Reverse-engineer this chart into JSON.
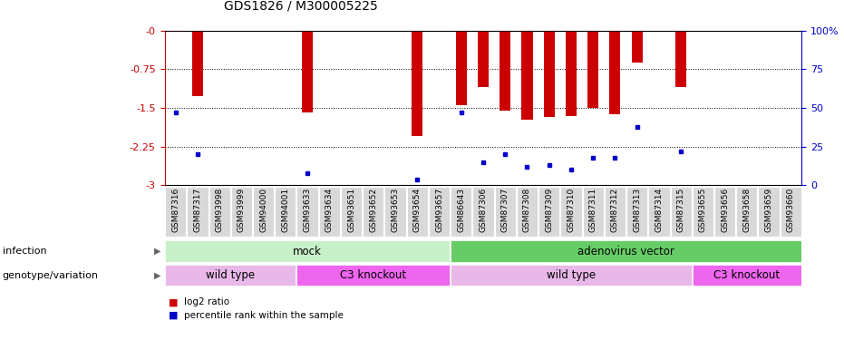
{
  "title": "GDS1826 / M300005225",
  "samples": [
    "GSM87316",
    "GSM87317",
    "GSM93998",
    "GSM93999",
    "GSM94000",
    "GSM94001",
    "GSM93633",
    "GSM93634",
    "GSM93651",
    "GSM93652",
    "GSM93653",
    "GSM93654",
    "GSM93657",
    "GSM86643",
    "GSM87306",
    "GSM87307",
    "GSM87308",
    "GSM87309",
    "GSM87310",
    "GSM87311",
    "GSM87312",
    "GSM87313",
    "GSM87314",
    "GSM87315",
    "GSM93655",
    "GSM93656",
    "GSM93658",
    "GSM93659",
    "GSM93660"
  ],
  "log2_ratio": [
    -0.03,
    -1.27,
    0,
    0,
    0,
    0,
    -1.58,
    0,
    0,
    0,
    0,
    -2.05,
    0,
    -1.45,
    -1.1,
    -1.55,
    -1.73,
    -1.68,
    -1.65,
    -1.5,
    -1.63,
    -0.62,
    0,
    -1.1,
    0,
    0,
    0,
    0,
    0
  ],
  "percentile": [
    47,
    20,
    0,
    0,
    0,
    0,
    8,
    0,
    0,
    0,
    0,
    4,
    0,
    47,
    15,
    20,
    12,
    13,
    10,
    18,
    18,
    38,
    0,
    22,
    0,
    0,
    0,
    0,
    0
  ],
  "infection_groups": [
    {
      "label": "mock",
      "start": 0,
      "end": 13,
      "color": "#c8f0c8"
    },
    {
      "label": "adenovirus vector",
      "start": 13,
      "end": 29,
      "color": "#66cc66"
    }
  ],
  "genotype_groups": [
    {
      "label": "wild type",
      "start": 0,
      "end": 6,
      "color": "#e8b8e8"
    },
    {
      "label": "C3 knockout",
      "start": 6,
      "end": 13,
      "color": "#ee66ee"
    },
    {
      "label": "wild type",
      "start": 13,
      "end": 24,
      "color": "#e8b8e8"
    },
    {
      "label": "C3 knockout",
      "start": 24,
      "end": 29,
      "color": "#ee66ee"
    }
  ],
  "bar_color": "#cc0000",
  "dot_color": "#0000cc",
  "ylim_left": [
    -3,
    0
  ],
  "yticks_left": [
    0,
    -0.75,
    -1.5,
    -2.25,
    -3
  ],
  "ytick_labels_left": [
    "-0",
    "-0.75",
    "-1.5",
    "-2.25",
    "-3"
  ],
  "yticks_right": [
    0,
    25,
    50,
    75,
    100
  ],
  "ytick_labels_right": [
    "0",
    "25",
    "50",
    "75",
    "100%"
  ],
  "background_color": "#ffffff",
  "label_infection": "infection",
  "label_genotype": "genotype/variation",
  "legend_log2": "log2 ratio",
  "legend_pct": "percentile rank within the sample",
  "tick_box_color": "#d8d8d8"
}
